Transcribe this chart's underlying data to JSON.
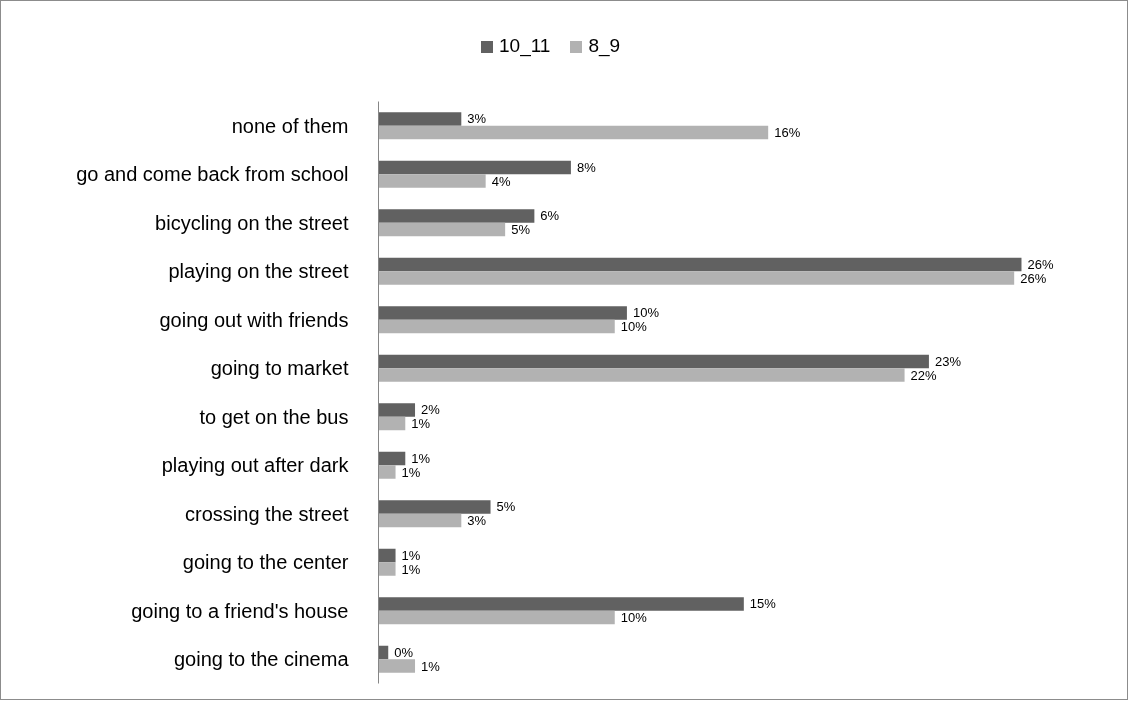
{
  "chart_data": {
    "type": "bar",
    "orientation": "horizontal",
    "categories": [
      "none of them",
      "go and come back from school",
      "bicycling on the street",
      "playing on the street",
      "going out with friends",
      "going to market",
      "to get on the bus",
      "playing out after dark",
      "crossing the street",
      "going to the center",
      "going to a friend's house",
      "going to the cinema"
    ],
    "series": [
      {
        "name": "10_11",
        "color": "#616161",
        "values": [
          3.4,
          7.9,
          6.4,
          26.4,
          10.2,
          22.6,
          1.5,
          1.1,
          4.6,
          0.7,
          15.0,
          0.4
        ],
        "value_labels": [
          "3%",
          "8%",
          "6%",
          "26%",
          "10%",
          "23%",
          "2%",
          "1%",
          "5%",
          "1%",
          "15%",
          "0%"
        ]
      },
      {
        "name": "8_9",
        "color": "#b2b2b2",
        "values": [
          16.0,
          4.4,
          5.2,
          26.1,
          9.7,
          21.6,
          1.1,
          0.7,
          3.4,
          0.7,
          9.7,
          1.5
        ],
        "value_labels": [
          "16%",
          "4%",
          "5%",
          "26%",
          "10%",
          "22%",
          "1%",
          "1%",
          "3%",
          "1%",
          "10%",
          "1%"
        ]
      }
    ],
    "legend": "top",
    "tick_labels": "y"
  }
}
